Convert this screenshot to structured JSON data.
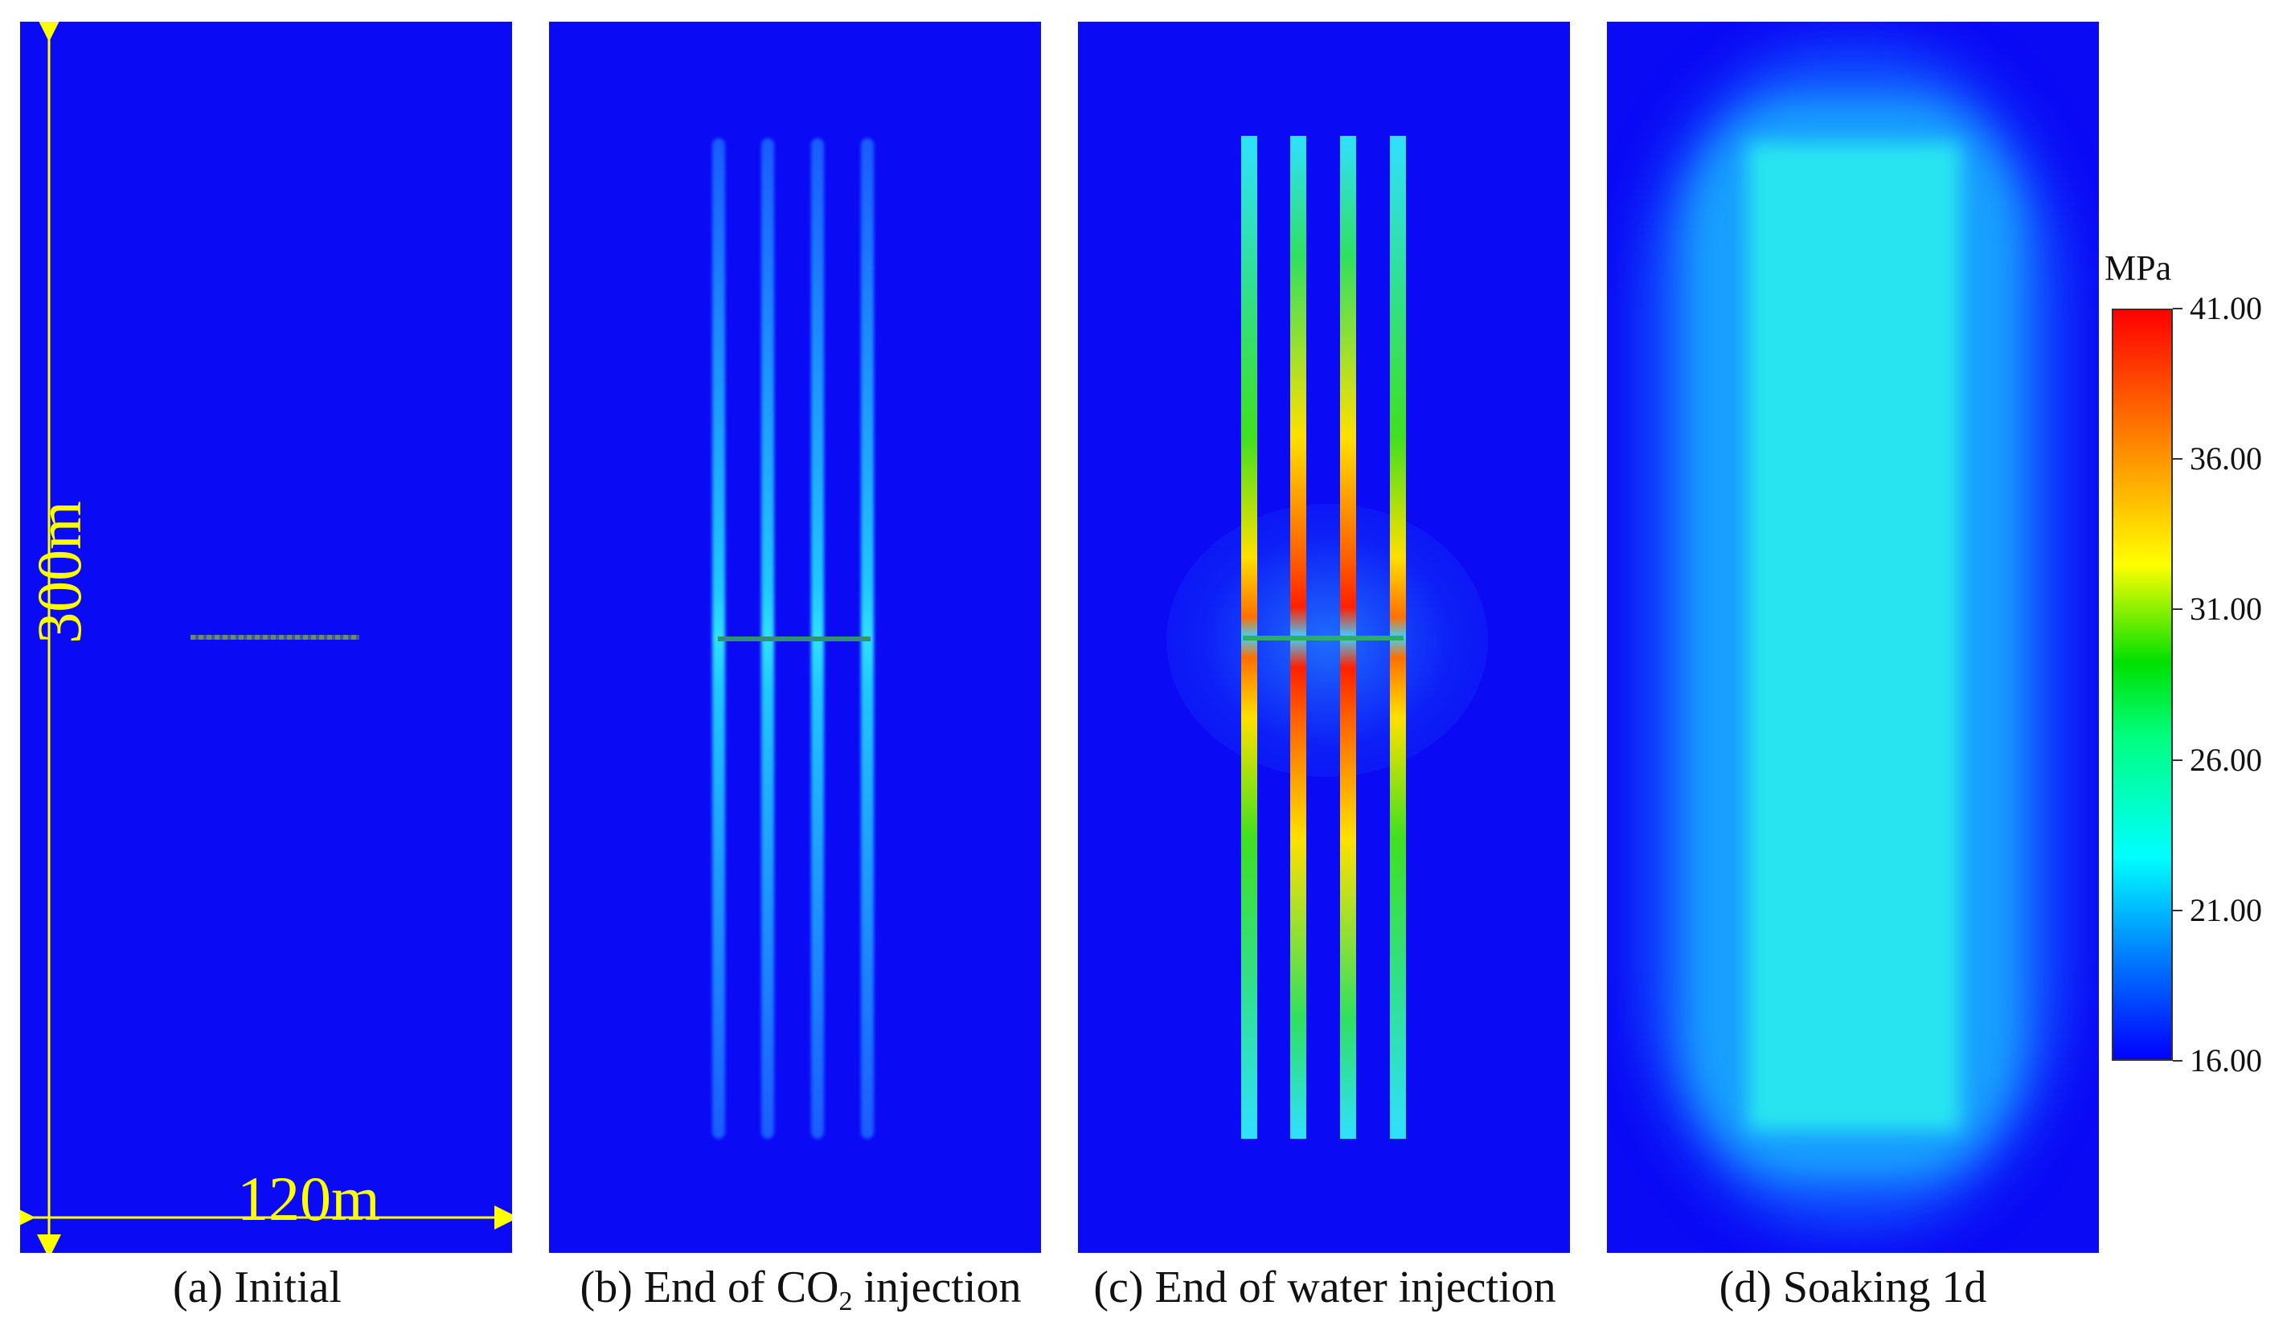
{
  "panels": [
    {
      "caption": "(a) Initial"
    },
    {
      "caption_pre": "(b) End of CO",
      "caption_sub": "2",
      "caption_post": " injection"
    },
    {
      "caption": "(c) End of water injection"
    },
    {
      "caption": "(d) Soaking 1d"
    }
  ],
  "dimensions": {
    "height": "300m",
    "width": "120m",
    "color": "#ffff00"
  },
  "colorbar": {
    "unit": "MPa",
    "ticks": [
      "41.00",
      "36.00",
      "31.00",
      "26.00",
      "21.00",
      "16.00"
    ],
    "min": 16,
    "max": 41,
    "colors": [
      "#0000ff",
      "#00ffff",
      "#00ff00",
      "#ffff00",
      "#ff0000"
    ]
  },
  "background_color": "#0a0af5"
}
